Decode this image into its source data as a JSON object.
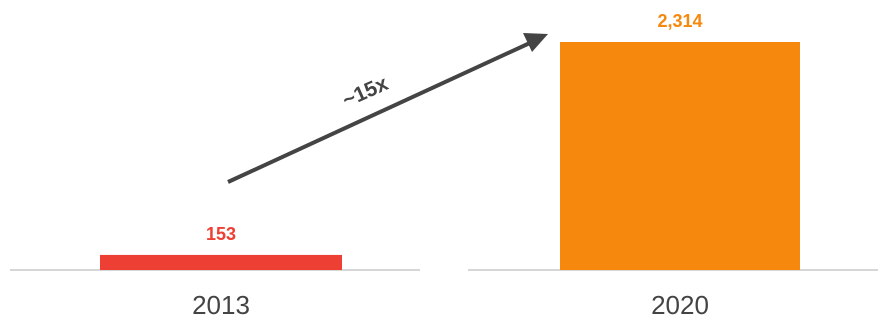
{
  "chart_data": {
    "type": "bar",
    "categories": [
      "2013",
      "2020"
    ],
    "values": [
      153,
      2314
    ],
    "value_labels": [
      "153",
      "2,314"
    ],
    "colors": [
      "#ee3f34",
      "#f5880d"
    ],
    "annotation": "~15x",
    "grid": false,
    "legend": "none"
  }
}
